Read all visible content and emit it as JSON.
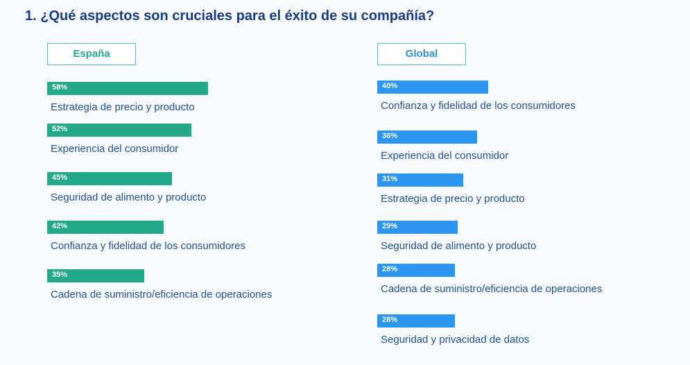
{
  "title": "1. ¿Qué aspectos son cruciales para el éxito de su compañía?",
  "colors": {
    "title": "#163a8c",
    "spain_bar": "#23a98a",
    "global_bar": "#2b95f0",
    "label_text": "#1f4f9e"
  },
  "chart_data": [
    {
      "type": "bar",
      "orientation": "horizontal",
      "title": "España",
      "categories": [
        "Estrategia de precio y producto",
        "Experiencia del consumidor",
        "Seguridad de alimento y producto",
        "Confianza y fidelidad de los consumidores",
        "Cadena de suministro/eficiencia de operaciones"
      ],
      "values": [
        58,
        52,
        45,
        42,
        35
      ],
      "value_labels": [
        "58%",
        "52%",
        "45%",
        "42%",
        "35%"
      ],
      "unit": "%",
      "xlim": [
        0,
        100
      ]
    },
    {
      "type": "bar",
      "orientation": "horizontal",
      "title": "Global",
      "categories": [
        "Confianza y fidelidad de los consumidores",
        "Experiencia del consumidor",
        "Estrategia de precio y producto",
        "Seguridad de alimento y producto",
        "Cadena de suministro/eficiencia de operaciones",
        "Seguridad y privacidad de datos"
      ],
      "values": [
        40,
        36,
        31,
        29,
        28,
        28
      ],
      "value_labels": [
        "40%",
        "36%",
        "31%",
        "29%",
        "28%",
        "28%"
      ],
      "unit": "%",
      "xlim": [
        0,
        100
      ]
    }
  ]
}
